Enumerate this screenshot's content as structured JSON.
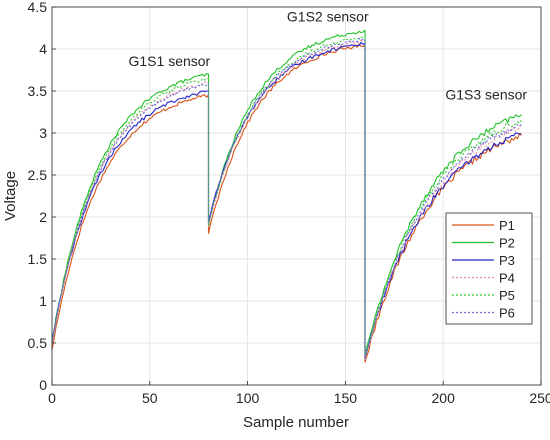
{
  "chart_data": {
    "type": "line",
    "xlabel": "Sample number",
    "ylabel": "Voltage",
    "xlim": [
      0,
      250
    ],
    "ylim": [
      0,
      4.5
    ],
    "xticks": [
      0,
      50,
      100,
      150,
      200,
      250
    ],
    "yticks": [
      0,
      0.5,
      1,
      1.5,
      2,
      2.5,
      3,
      3.5,
      4,
      4.5
    ],
    "grid": true,
    "legend_position": "right",
    "annotations": [
      {
        "text": "G1S1 sensor",
        "x": 60,
        "y": 3.8
      },
      {
        "text": "G1S2 sensor",
        "x": 141,
        "y": 4.33
      },
      {
        "text": "G1S3 sensor",
        "x": 222,
        "y": 3.4
      }
    ],
    "segments": [
      [
        0,
        80
      ],
      [
        80,
        160
      ],
      [
        160,
        240
      ]
    ],
    "series": [
      {
        "name": "P1",
        "color": "#d95319",
        "dash": "solid",
        "values": [
          [
            0.42,
            3.45
          ],
          [
            1.8,
            4.05
          ],
          [
            0.27,
            2.97
          ]
        ]
      },
      {
        "name": "P2",
        "color": "#22c32a",
        "dash": "solid",
        "values": [
          [
            0.52,
            3.7
          ],
          [
            1.92,
            4.22
          ],
          [
            0.34,
            3.22
          ]
        ]
      },
      {
        "name": "P3",
        "color": "#2424c8",
        "dash": "solid",
        "values": [
          [
            0.53,
            3.5
          ],
          [
            1.95,
            4.07
          ],
          [
            0.32,
            2.99
          ]
        ]
      },
      {
        "name": "P4",
        "color": "#e38aa0",
        "dash": "dotted",
        "values": [
          [
            0.48,
            3.6
          ],
          [
            1.88,
            4.1
          ],
          [
            0.3,
            3.07
          ]
        ]
      },
      {
        "name": "P5",
        "color": "#33cc33",
        "dash": "dotted",
        "values": [
          [
            0.5,
            3.65
          ],
          [
            1.9,
            4.15
          ],
          [
            0.33,
            3.15
          ]
        ]
      },
      {
        "name": "P6",
        "color": "#6a6ad8",
        "dash": "dotted",
        "values": [
          [
            0.51,
            3.58
          ],
          [
            1.93,
            4.12
          ],
          [
            0.31,
            3.1
          ]
        ]
      }
    ]
  }
}
